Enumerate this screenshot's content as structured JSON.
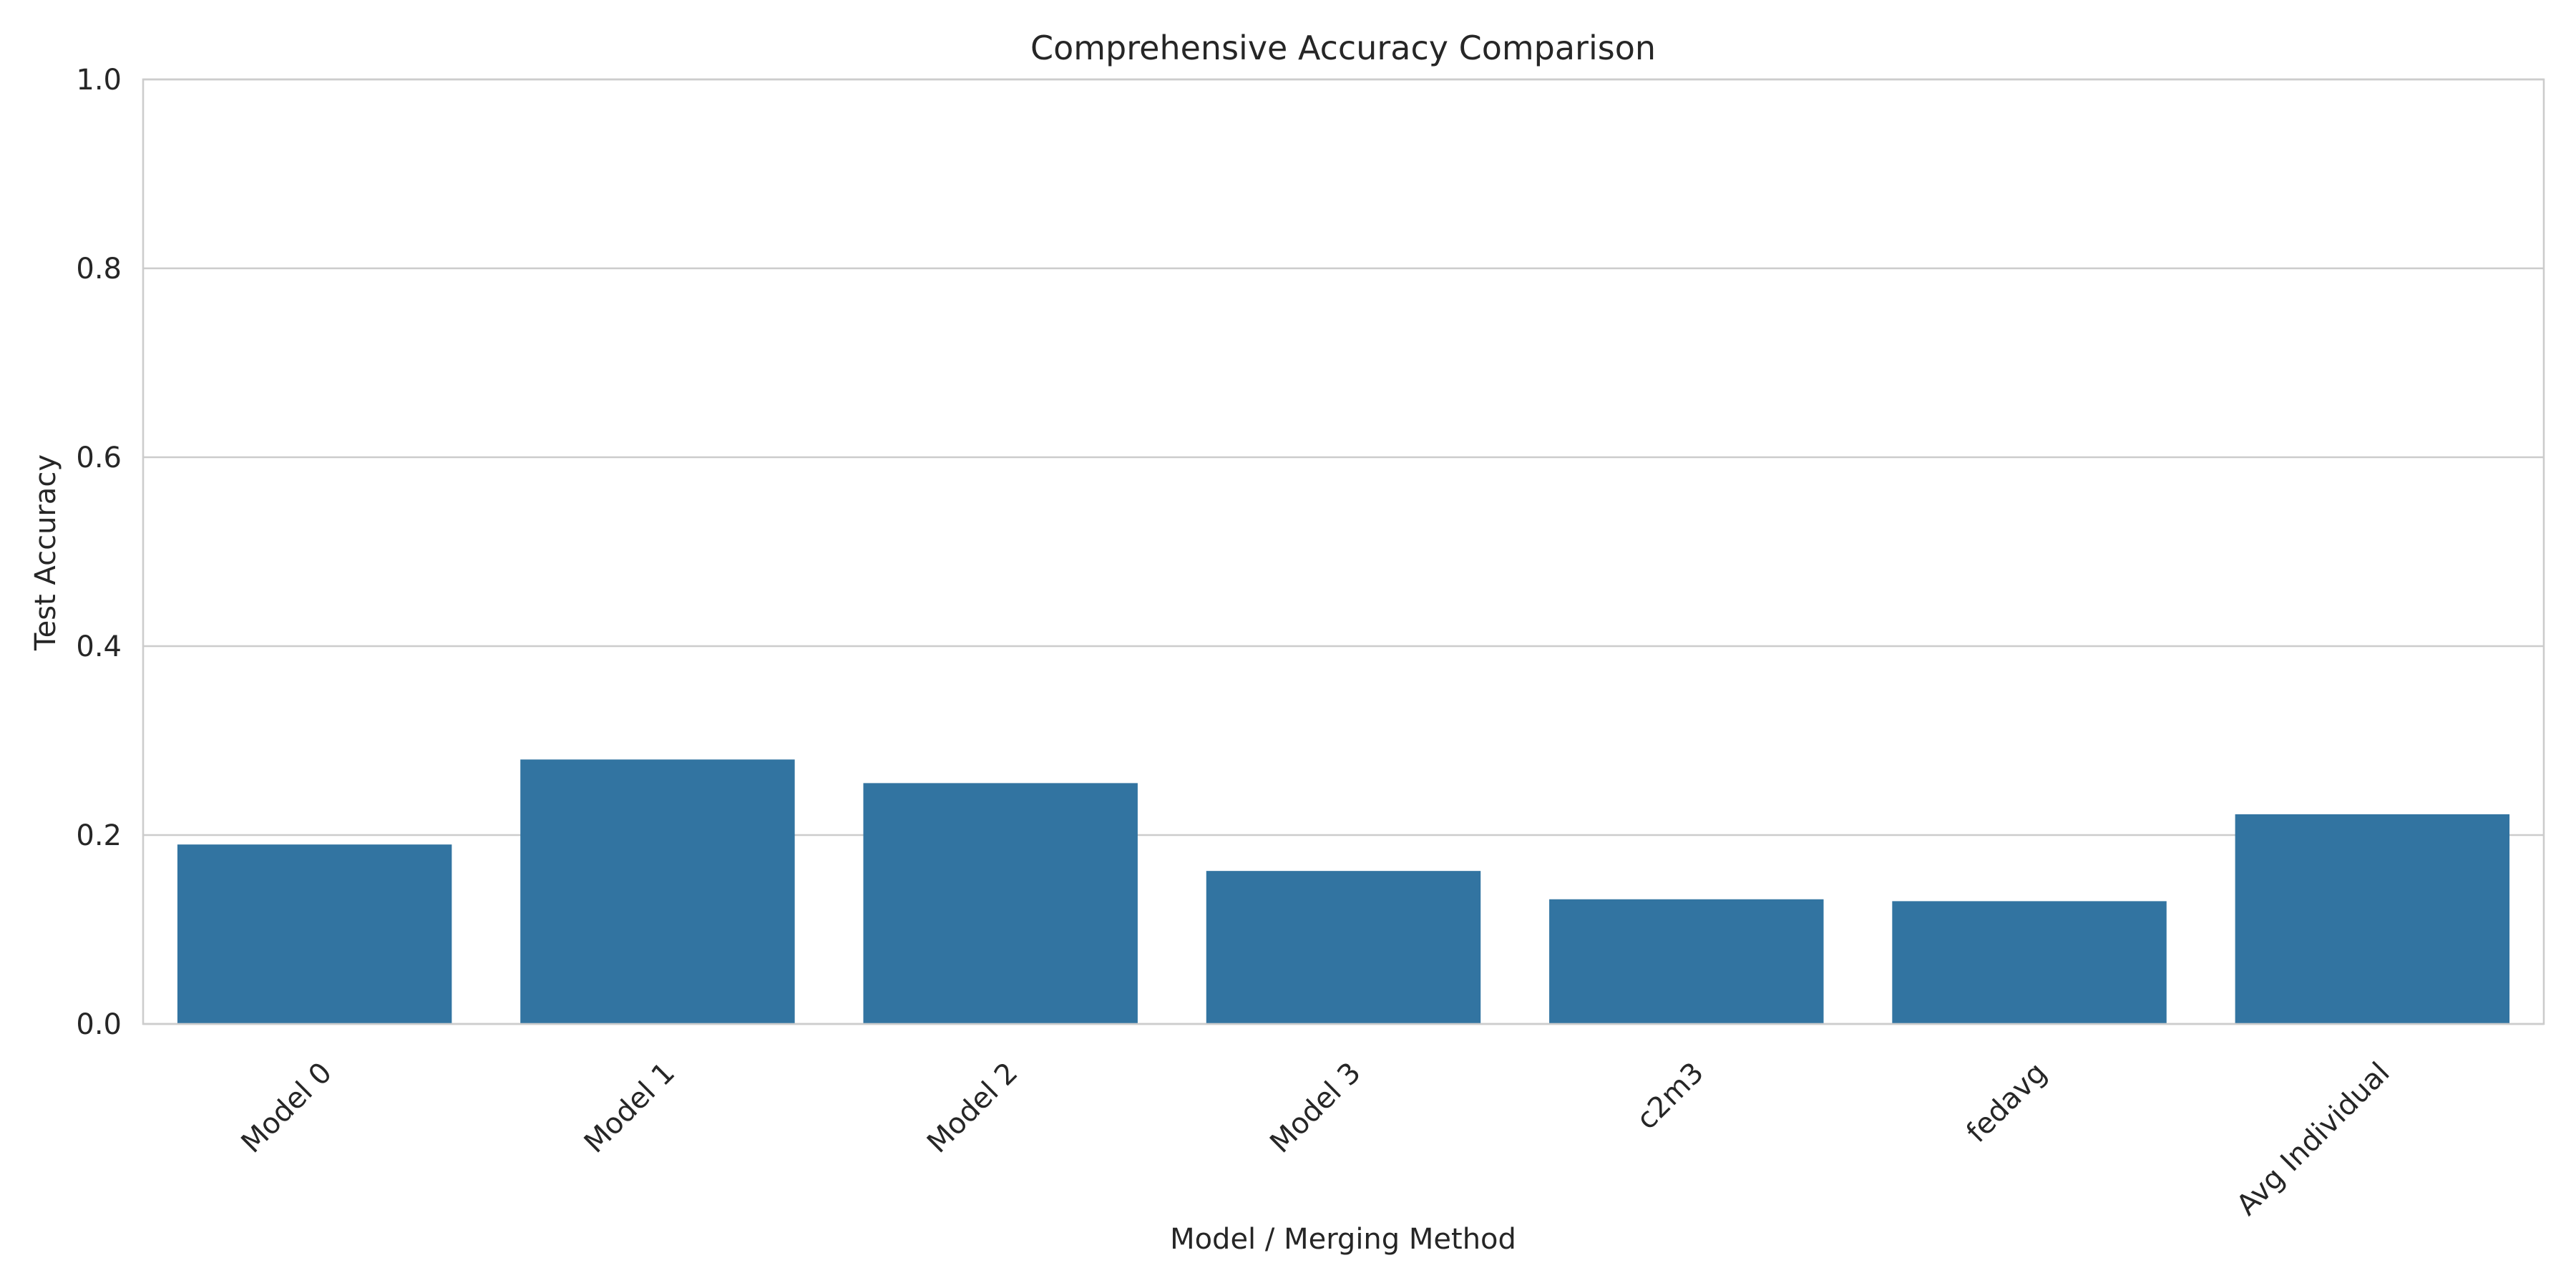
{
  "chart_data": {
    "type": "bar",
    "title": "Comprehensive Accuracy Comparison",
    "xlabel": "Model / Merging Method",
    "ylabel": "Test Accuracy",
    "categories": [
      "Model 0",
      "Model 1",
      "Model 2",
      "Model 3",
      "c2m3",
      "fedavg",
      "Avg Individual"
    ],
    "values": [
      0.19,
      0.28,
      0.255,
      0.162,
      0.132,
      0.13,
      0.222
    ],
    "ylim": [
      0,
      1.0
    ],
    "yticks": [
      0.0,
      0.2,
      0.4,
      0.6,
      0.8,
      1.0
    ],
    "ytick_labels": [
      "0.0",
      "0.2",
      "0.4",
      "0.6",
      "0.8",
      "1.0"
    ],
    "grid": "y",
    "bar_color": "#3274a1"
  }
}
